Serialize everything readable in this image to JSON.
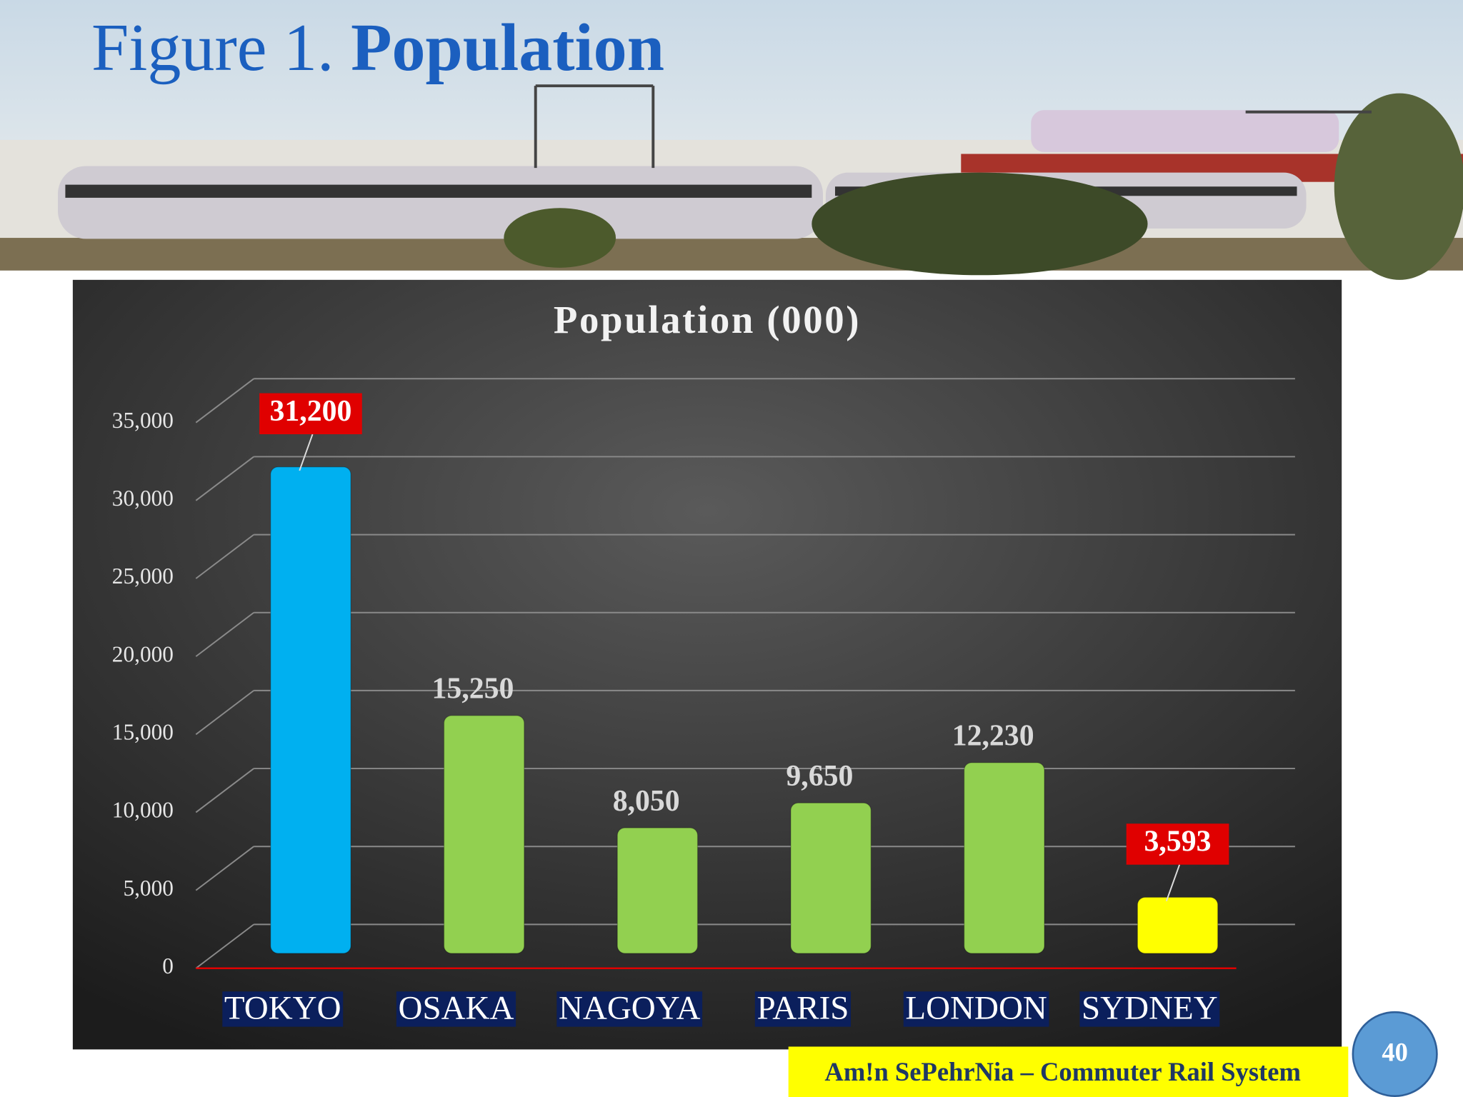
{
  "slide": {
    "title_prefix": "Figure 1.",
    "title": "Population"
  },
  "chart_data": {
    "type": "bar",
    "title": "Population (000)",
    "categories": [
      "TOKYO",
      "OSAKA",
      "NAGOYA",
      "PARIS",
      "LONDON",
      "SYDNEY"
    ],
    "values": [
      31200,
      15250,
      8050,
      9650,
      12230,
      3593
    ],
    "value_labels": [
      "31,200",
      "15,250",
      "8,050",
      "9,650",
      "12,230",
      "3,593"
    ],
    "colors": [
      "#00b0f0",
      "#92d050",
      "#92d050",
      "#92d050",
      "#92d050",
      "#ffff00"
    ],
    "highlight": [
      true,
      false,
      false,
      false,
      false,
      true
    ],
    "ylim": [
      0,
      35000
    ],
    "yticks": [
      0,
      {
        "value": 5000,
        "label": "5,000"
      },
      {
        "value": 10000,
        "label": "10,000"
      },
      {
        "value": 15000,
        "label": "15,000"
      },
      {
        "value": 20000,
        "label": "20,000"
      },
      {
        "value": 25000,
        "label": "25,000"
      },
      {
        "value": 30000,
        "label": "30,000"
      },
      {
        "value": 35000,
        "label": "35,000"
      }
    ],
    "grid": true
  },
  "footer": "Am!n SePehrNia – Commuter Rail System",
  "page_number": "40"
}
